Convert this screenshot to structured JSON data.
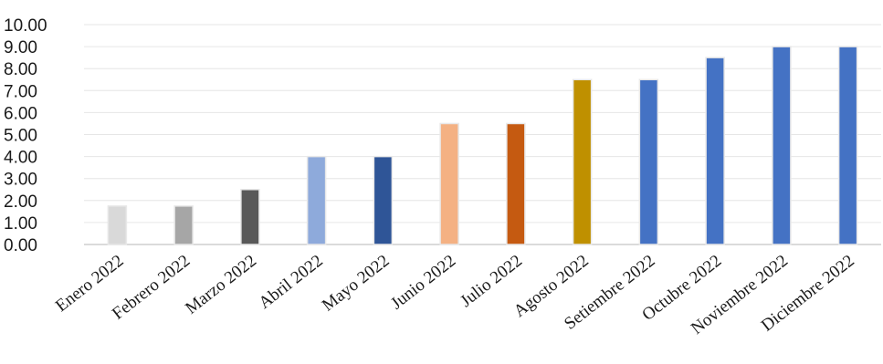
{
  "chart_data": {
    "type": "bar",
    "title": "",
    "xlabel": "",
    "ylabel": "",
    "ylim": [
      0,
      10
    ],
    "yticks": [
      "0.00",
      "1.00",
      "2.00",
      "3.00",
      "4.00",
      "5.00",
      "6.00",
      "7.00",
      "8.00",
      "9.00",
      "10.00"
    ],
    "grid": true,
    "categories": [
      "Enero 2022",
      "Febrero 2022",
      "Marzo 2022",
      "Abril 2022",
      "Mayo 2022",
      "Junio 2022",
      "Julio 2022",
      "Agosto 2022",
      "Setiembre 2022",
      "Octubre 2022",
      "Noviembre 2022",
      "Diciembre 2022"
    ],
    "values": [
      1.75,
      1.75,
      2.5,
      4.0,
      4.0,
      5.5,
      5.5,
      7.5,
      7.5,
      8.5,
      9.0,
      9.0
    ],
    "colors": [
      "#d9d9d9",
      "#a6a6a6",
      "#595959",
      "#8eaadb",
      "#2f5597",
      "#f4b183",
      "#c55a11",
      "#bf9000",
      "#4472c4",
      "#4472c4",
      "#4472c4",
      "#4472c4"
    ]
  }
}
